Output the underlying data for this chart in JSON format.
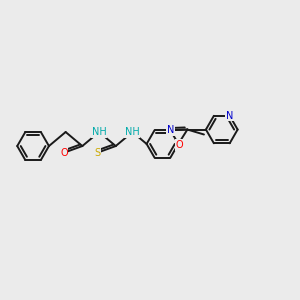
{
  "background_color": "#ebebeb",
  "bond_color": "#1a1a1a",
  "atom_colors": {
    "O": "#ff0000",
    "N": "#0000cc",
    "S": "#ccaa00",
    "NH": "#00aaaa",
    "C": "#1a1a1a"
  },
  "figsize": [
    3.0,
    3.0
  ],
  "dpi": 100,
  "lw": 1.4,
  "font_size": 7.0
}
